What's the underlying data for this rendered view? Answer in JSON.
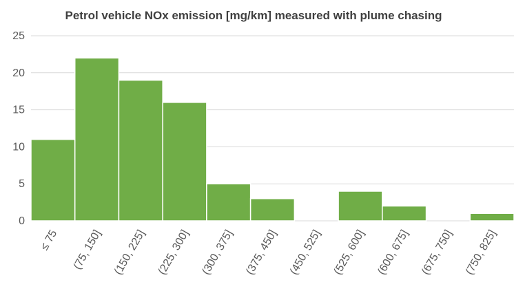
{
  "chart_data": {
    "type": "bar",
    "title": "Petrol vehicle NOx emission [mg/km] measured with plume chasing",
    "xlabel": "",
    "ylabel": "",
    "categories": [
      "≤ 75",
      "(75, 150]",
      "(150, 225]",
      "(225, 300]",
      "(300, 375]",
      "(375, 450]",
      "(450, 525]",
      "(525, 600]",
      "(600, 675]",
      "(675, 750]",
      "(750, 825]"
    ],
    "values": [
      11,
      22,
      19,
      16,
      5,
      3,
      0,
      4,
      2,
      0,
      1
    ],
    "ylim": [
      0,
      25
    ],
    "yticks": [
      0,
      5,
      10,
      15,
      20,
      25
    ],
    "grid": true,
    "bar_color": "#70ad47"
  }
}
